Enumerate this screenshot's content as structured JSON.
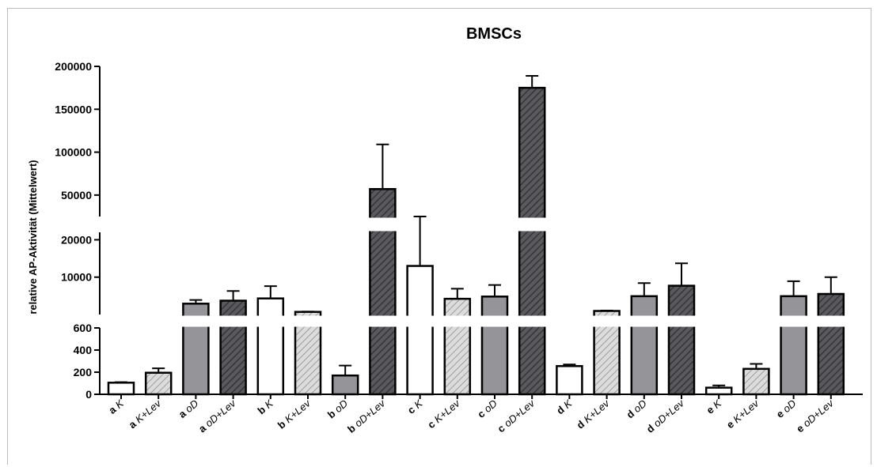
{
  "chart_data": {
    "type": "bar",
    "title": "BMSCs",
    "xlabel": "",
    "ylabel": "relative AP-Aktivität (Mittelwert)",
    "axis_breaks": [
      {
        "segment": "bottom",
        "ylim": [
          0,
          600
        ],
        "ticks": [
          "0",
          "200",
          "400",
          "600"
        ]
      },
      {
        "segment": "middle",
        "ylim": [
          0,
          22000
        ],
        "ticks": [
          "10000",
          "20000"
        ]
      },
      {
        "segment": "top",
        "ylim": [
          25000,
          200000
        ],
        "ticks": [
          "50000",
          "100000",
          "150000",
          "200000"
        ]
      }
    ],
    "categories": [
      {
        "group": "a",
        "label": "K"
      },
      {
        "group": "a",
        "label": "K+Lev"
      },
      {
        "group": "a",
        "label": "oD"
      },
      {
        "group": "a",
        "label": "oD+Lev"
      },
      {
        "group": "b",
        "label": "K"
      },
      {
        "group": "b",
        "label": "K+Lev"
      },
      {
        "group": "b",
        "label": "oD"
      },
      {
        "group": "b",
        "label": "oD+Lev"
      },
      {
        "group": "c",
        "label": "K"
      },
      {
        "group": "c",
        "label": "K+Lev"
      },
      {
        "group": "c",
        "label": "oD"
      },
      {
        "group": "c",
        "label": "oD+Lev"
      },
      {
        "group": "d",
        "label": "K"
      },
      {
        "group": "d",
        "label": "K+Lev"
      },
      {
        "group": "d",
        "label": "oD"
      },
      {
        "group": "d",
        "label": "oD+Lev"
      },
      {
        "group": "e",
        "label": "K"
      },
      {
        "group": "e",
        "label": "K+Lev"
      },
      {
        "group": "e",
        "label": "oD"
      },
      {
        "group": "e",
        "label": "oD+Lev"
      }
    ],
    "values": [
      105,
      195,
      2900,
      3700,
      4300,
      700,
      170,
      57000,
      13000,
      4200,
      4800,
      175000,
      255,
      950,
      4900,
      7700,
      60,
      230,
      4900,
      5500
    ],
    "errors": [
      5,
      40,
      1000,
      2600,
      3300,
      80,
      90,
      52000,
      12000,
      2700,
      3100,
      14000,
      15,
      120,
      3500,
      6000,
      20,
      45,
      4000,
      4500
    ],
    "fills": [
      "white",
      "light-hatched",
      "gray",
      "dark-hatched",
      "white",
      "light-hatched",
      "gray",
      "dark-hatched",
      "white",
      "light-hatched",
      "gray",
      "dark-hatched",
      "white",
      "light-hatched",
      "gray",
      "dark-hatched",
      "white",
      "light-hatched",
      "gray",
      "dark-hatched"
    ],
    "colors": {
      "gray": "#959499",
      "dark-hatched": "#5a5a5e",
      "light-hatched": "#d9d9d9",
      "white": "#ffffff",
      "axis": "#000000"
    },
    "legend": "none",
    "grid": false
  }
}
